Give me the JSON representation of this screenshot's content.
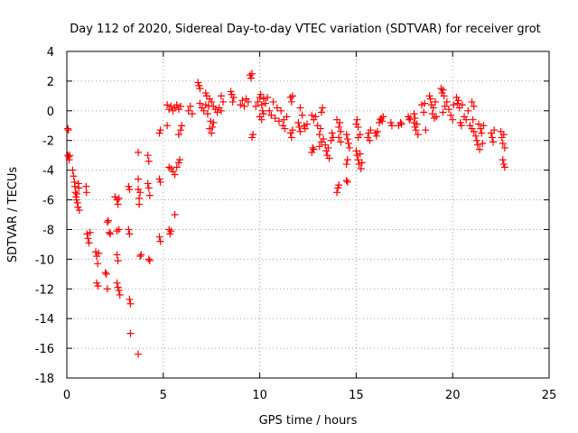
{
  "chart_data": {
    "type": "scatter",
    "title": "Day 112 of 2020, Sidereal Day-to-day VTEC variation (SDTVAR) for receiver grot",
    "xlabel": "GPS time / hours",
    "ylabel": "SDTVAR / TECUs",
    "xlim": [
      0,
      25
    ],
    "ylim": [
      -18,
      4
    ],
    "xticks": [
      0,
      5,
      10,
      15,
      20,
      25
    ],
    "yticks": [
      -18,
      -16,
      -14,
      -12,
      -10,
      -8,
      -6,
      -4,
      -2,
      0,
      2,
      4
    ],
    "grid": true,
    "marker": "+",
    "color": "#ff0000",
    "series": [
      {
        "name": "SDTVAR",
        "points": [
          [
            0.05,
            -1.2
          ],
          [
            0.08,
            -1.3
          ],
          [
            0.05,
            -3.0
          ],
          [
            0.1,
            -3.1
          ],
          [
            0.12,
            -3.3
          ],
          [
            0.15,
            -3.0
          ],
          [
            0.3,
            -4.0
          ],
          [
            0.35,
            -4.4
          ],
          [
            0.4,
            -4.8
          ],
          [
            0.42,
            -5.1
          ],
          [
            0.45,
            -5.5
          ],
          [
            0.48,
            -5.8
          ],
          [
            0.5,
            -6.0
          ],
          [
            0.52,
            -5.6
          ],
          [
            0.55,
            -6.2
          ],
          [
            0.58,
            -6.5
          ],
          [
            0.6,
            -4.9
          ],
          [
            0.62,
            -5.2
          ],
          [
            0.65,
            -6.7
          ],
          [
            1.0,
            -5.1
          ],
          [
            1.02,
            -5.5
          ],
          [
            1.05,
            -8.3
          ],
          [
            1.1,
            -8.6
          ],
          [
            1.15,
            -8.9
          ],
          [
            1.2,
            -8.2
          ],
          [
            1.5,
            -9.5
          ],
          [
            1.55,
            -9.8
          ],
          [
            1.6,
            -10.3
          ],
          [
            1.65,
            -9.6
          ],
          [
            1.55,
            -11.6
          ],
          [
            1.62,
            -11.8
          ],
          [
            2.0,
            -10.9
          ],
          [
            2.05,
            -11.0
          ],
          [
            2.1,
            -12.0
          ],
          [
            2.1,
            -7.5
          ],
          [
            2.15,
            -7.4
          ],
          [
            2.2,
            -8.2
          ],
          [
            2.25,
            -8.3
          ],
          [
            2.5,
            -5.8
          ],
          [
            2.6,
            -6.0
          ],
          [
            2.65,
            -6.3
          ],
          [
            2.7,
            -5.9
          ],
          [
            2.6,
            -8.1
          ],
          [
            2.7,
            -8.0
          ],
          [
            2.6,
            -9.7
          ],
          [
            2.65,
            -10.1
          ],
          [
            2.6,
            -11.6
          ],
          [
            2.7,
            -12.1
          ],
          [
            2.75,
            -12.4
          ],
          [
            2.65,
            -11.9
          ],
          [
            3.2,
            -5.1
          ],
          [
            3.25,
            -5.3
          ],
          [
            3.2,
            -8.0
          ],
          [
            3.25,
            -8.3
          ],
          [
            3.25,
            -12.7
          ],
          [
            3.3,
            -13.0
          ],
          [
            3.3,
            -15.0
          ],
          [
            3.7,
            -2.8
          ],
          [
            3.7,
            -4.6
          ],
          [
            3.7,
            -5.3
          ],
          [
            3.75,
            -5.9
          ],
          [
            3.75,
            -6.3
          ],
          [
            3.8,
            -5.5
          ],
          [
            3.8,
            -9.8
          ],
          [
            3.85,
            -9.7
          ],
          [
            3.7,
            -16.4
          ],
          [
            4.2,
            -3.0
          ],
          [
            4.25,
            -3.4
          ],
          [
            4.2,
            -4.9
          ],
          [
            4.25,
            -5.2
          ],
          [
            4.3,
            -5.7
          ],
          [
            4.25,
            -10.0
          ],
          [
            4.3,
            -10.1
          ],
          [
            4.8,
            -1.5
          ],
          [
            4.85,
            -1.3
          ],
          [
            4.8,
            -4.6
          ],
          [
            4.85,
            -4.8
          ],
          [
            4.8,
            -8.5
          ],
          [
            4.85,
            -8.8
          ],
          [
            5.2,
            -1.0
          ],
          [
            5.3,
            -3.8
          ],
          [
            5.4,
            -3.9
          ],
          [
            5.5,
            -4.1
          ],
          [
            5.6,
            -4.3
          ],
          [
            5.7,
            -3.8
          ],
          [
            5.8,
            -3.5
          ],
          [
            5.85,
            -3.3
          ],
          [
            5.3,
            -8.0
          ],
          [
            5.35,
            -8.3
          ],
          [
            5.4,
            -8.1
          ],
          [
            5.6,
            -7.0
          ],
          [
            5.8,
            -1.6
          ],
          [
            5.9,
            -1.3
          ],
          [
            5.95,
            -1.0
          ],
          [
            5.2,
            0.4
          ],
          [
            5.3,
            0.1
          ],
          [
            5.4,
            0.3
          ],
          [
            5.5,
            0.0
          ],
          [
            5.6,
            0.2
          ],
          [
            5.7,
            0.4
          ],
          [
            5.8,
            0.1
          ],
          [
            5.9,
            0.3
          ],
          [
            6.3,
            0.0
          ],
          [
            6.4,
            0.3
          ],
          [
            6.5,
            -0.2
          ],
          [
            6.8,
            1.9
          ],
          [
            6.85,
            1.7
          ],
          [
            6.9,
            1.5
          ],
          [
            6.9,
            0.5
          ],
          [
            7.0,
            0.2
          ],
          [
            7.1,
            0.0
          ],
          [
            7.2,
            0.4
          ],
          [
            7.3,
            -0.2
          ],
          [
            7.35,
            0.3
          ],
          [
            7.4,
            0.8
          ],
          [
            7.5,
            0.6
          ],
          [
            7.6,
            0.3
          ],
          [
            7.7,
            0.1
          ],
          [
            7.8,
            -0.1
          ],
          [
            7.9,
            0.2
          ],
          [
            8.0,
            0.0
          ],
          [
            7.2,
            1.2
          ],
          [
            7.25,
            1.0
          ],
          [
            7.4,
            -1.2
          ],
          [
            7.45,
            -0.7
          ],
          [
            7.5,
            -1.5
          ],
          [
            7.55,
            -1.1
          ],
          [
            7.6,
            -0.8
          ],
          [
            8.0,
            1.0
          ],
          [
            8.1,
            0.6
          ],
          [
            8.5,
            1.3
          ],
          [
            8.55,
            1.1
          ],
          [
            8.6,
            0.6
          ],
          [
            8.65,
            0.9
          ],
          [
            9.0,
            0.4
          ],
          [
            9.1,
            0.7
          ],
          [
            9.2,
            0.3
          ],
          [
            9.3,
            0.8
          ],
          [
            9.4,
            0.6
          ],
          [
            9.5,
            2.4
          ],
          [
            9.55,
            2.2
          ],
          [
            9.6,
            2.5
          ],
          [
            9.6,
            -1.8
          ],
          [
            9.65,
            -1.6
          ],
          [
            9.8,
            0.3
          ],
          [
            9.9,
            0.6
          ],
          [
            10.0,
            0.9
          ],
          [
            10.05,
            1.1
          ],
          [
            10.1,
            0.4
          ],
          [
            10.15,
            0.0
          ],
          [
            10.2,
            0.8
          ],
          [
            10.0,
            -0.4
          ],
          [
            10.1,
            -0.6
          ],
          [
            10.2,
            -0.2
          ],
          [
            10.3,
            0.5
          ],
          [
            10.4,
            0.9
          ],
          [
            10.5,
            0.0
          ],
          [
            10.6,
            -0.3
          ],
          [
            10.7,
            0.6
          ],
          [
            10.8,
            -0.5
          ],
          [
            10.9,
            0.2
          ],
          [
            11.0,
            -0.7
          ],
          [
            11.1,
            0.0
          ],
          [
            11.2,
            -1.0
          ],
          [
            11.25,
            -0.6
          ],
          [
            11.3,
            -1.2
          ],
          [
            11.4,
            -0.4
          ],
          [
            11.6,
            -1.5
          ],
          [
            11.65,
            -1.8
          ],
          [
            11.7,
            -1.3
          ],
          [
            11.6,
            0.9
          ],
          [
            11.65,
            0.6
          ],
          [
            11.7,
            1.0
          ],
          [
            12.0,
            -0.8
          ],
          [
            12.05,
            -1.1
          ],
          [
            12.1,
            -1.4
          ],
          [
            12.1,
            0.2
          ],
          [
            12.2,
            -0.3
          ],
          [
            12.3,
            -1.0
          ],
          [
            12.35,
            -1.2
          ],
          [
            12.45,
            -0.9
          ],
          [
            12.7,
            -2.8
          ],
          [
            12.75,
            -2.5
          ],
          [
            12.8,
            -2.6
          ],
          [
            12.7,
            -0.3
          ],
          [
            12.8,
            -0.6
          ],
          [
            12.9,
            -0.4
          ],
          [
            13.0,
            -1.0
          ],
          [
            13.1,
            -1.6
          ],
          [
            13.15,
            -1.2
          ],
          [
            13.1,
            -2.4
          ],
          [
            13.2,
            -2.1
          ],
          [
            13.3,
            -1.9
          ],
          [
            13.4,
            -2.3
          ],
          [
            13.45,
            -2.7
          ],
          [
            13.5,
            -3.0
          ],
          [
            13.55,
            -2.5
          ],
          [
            13.6,
            -3.2
          ],
          [
            13.7,
            -2.0
          ],
          [
            13.75,
            -1.5
          ],
          [
            13.8,
            -1.8
          ],
          [
            13.2,
            -0.1
          ],
          [
            13.25,
            0.2
          ],
          [
            14.0,
            -5.5
          ],
          [
            14.05,
            -5.2
          ],
          [
            14.1,
            -5.0
          ],
          [
            14.0,
            -0.6
          ],
          [
            14.1,
            -1.1
          ],
          [
            14.15,
            -0.8
          ],
          [
            14.2,
            -1.4
          ],
          [
            14.1,
            -1.8
          ],
          [
            14.2,
            -2.1
          ],
          [
            14.5,
            -3.6
          ],
          [
            14.55,
            -3.3
          ],
          [
            14.5,
            -4.7
          ],
          [
            14.55,
            -4.8
          ],
          [
            14.5,
            -1.6
          ],
          [
            14.55,
            -1.9
          ],
          [
            14.6,
            -2.2
          ],
          [
            14.65,
            -2.5
          ],
          [
            15.0,
            -0.9
          ],
          [
            15.05,
            -0.6
          ],
          [
            15.1,
            -1.1
          ],
          [
            15.0,
            -2.7
          ],
          [
            15.05,
            -3.0
          ],
          [
            15.1,
            -3.3
          ],
          [
            15.15,
            -3.6
          ],
          [
            15.2,
            -2.9
          ],
          [
            15.25,
            -3.9
          ],
          [
            15.3,
            -3.5
          ],
          [
            15.1,
            -1.8
          ],
          [
            15.2,
            -1.6
          ],
          [
            15.6,
            -1.8
          ],
          [
            15.65,
            -1.5
          ],
          [
            15.7,
            -2.0
          ],
          [
            15.75,
            -1.3
          ],
          [
            16.0,
            -1.5
          ],
          [
            16.05,
            -1.7
          ],
          [
            16.1,
            -1.4
          ],
          [
            16.2,
            -0.8
          ],
          [
            16.25,
            -0.6
          ],
          [
            16.3,
            -0.5
          ],
          [
            16.35,
            -0.7
          ],
          [
            16.4,
            -0.4
          ],
          [
            16.8,
            -0.8
          ],
          [
            16.85,
            -1.0
          ],
          [
            17.2,
            -1.0
          ],
          [
            17.3,
            -0.8
          ],
          [
            17.35,
            -0.9
          ],
          [
            17.7,
            -0.4
          ],
          [
            17.75,
            -0.6
          ],
          [
            17.8,
            -0.5
          ],
          [
            18.0,
            -0.8
          ],
          [
            18.05,
            -1.1
          ],
          [
            18.1,
            -1.3
          ],
          [
            18.15,
            -0.9
          ],
          [
            18.2,
            -1.6
          ],
          [
            18.0,
            -0.2
          ],
          [
            18.05,
            -0.5
          ],
          [
            18.4,
            0.4
          ],
          [
            18.5,
            -0.1
          ],
          [
            18.55,
            0.5
          ],
          [
            18.6,
            -1.3
          ],
          [
            18.8,
            1.0
          ],
          [
            18.85,
            0.8
          ],
          [
            18.9,
            0.4
          ],
          [
            18.95,
            -0.2
          ],
          [
            19.0,
            0.2
          ],
          [
            19.05,
            -0.5
          ],
          [
            19.1,
            0.6
          ],
          [
            19.15,
            -0.4
          ],
          [
            19.4,
            1.5
          ],
          [
            19.45,
            1.2
          ],
          [
            19.5,
            1.4
          ],
          [
            19.55,
            1.0
          ],
          [
            19.5,
            -0.1
          ],
          [
            19.6,
            0.3
          ],
          [
            19.7,
            0.6
          ],
          [
            19.8,
            0.1
          ],
          [
            19.9,
            -0.3
          ],
          [
            20.0,
            -0.6
          ],
          [
            20.05,
            0.4
          ],
          [
            20.2,
            0.9
          ],
          [
            20.25,
            0.5
          ],
          [
            20.3,
            0.7
          ],
          [
            20.35,
            0.2
          ],
          [
            20.4,
            -0.8
          ],
          [
            20.45,
            -1.0
          ],
          [
            20.5,
            0.4
          ],
          [
            20.6,
            -0.4
          ],
          [
            20.7,
            -0.6
          ],
          [
            20.8,
            0.0
          ],
          [
            20.9,
            -1.0
          ],
          [
            21.0,
            -1.2
          ],
          [
            21.05,
            -0.6
          ],
          [
            21.1,
            -1.4
          ],
          [
            21.2,
            -1.7
          ],
          [
            21.25,
            -2.0
          ],
          [
            21.3,
            -2.3
          ],
          [
            21.35,
            -0.9
          ],
          [
            21.4,
            -2.6
          ],
          [
            21.45,
            -1.2
          ],
          [
            21.5,
            -1.5
          ],
          [
            21.55,
            -2.2
          ],
          [
            21.6,
            -1.0
          ],
          [
            21.0,
            0.6
          ],
          [
            21.1,
            0.3
          ],
          [
            22.0,
            -1.5
          ],
          [
            22.05,
            -1.8
          ],
          [
            22.1,
            -2.1
          ],
          [
            22.15,
            -1.3
          ],
          [
            22.5,
            -1.4
          ],
          [
            22.55,
            -1.8
          ],
          [
            22.6,
            -2.2
          ],
          [
            22.65,
            -1.6
          ],
          [
            22.7,
            -2.5
          ],
          [
            22.6,
            -3.3
          ],
          [
            22.65,
            -3.6
          ],
          [
            22.7,
            -3.8
          ]
        ]
      }
    ]
  }
}
